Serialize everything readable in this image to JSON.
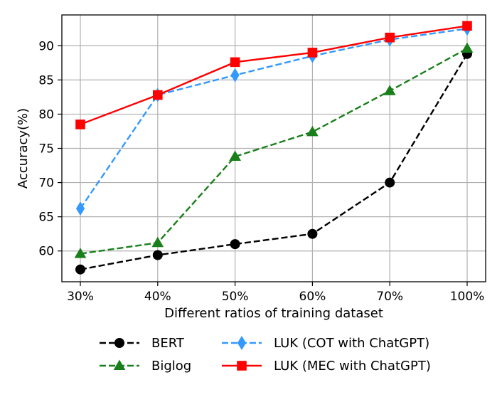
{
  "chart_data": {
    "type": "line",
    "title": "",
    "xlabel": "Different ratios of training dataset",
    "ylabel": "Accuracy(%)",
    "categories": [
      "30%",
      "40%",
      "50%",
      "60%",
      "70%",
      "100%"
    ],
    "ylim": [
      55.5,
      94.5
    ],
    "yticks": [
      60,
      65,
      70,
      75,
      80,
      85,
      90
    ],
    "grid": true,
    "legend_position": "bottom",
    "series": [
      {
        "name": "BERT",
        "color": "#000000",
        "dash": "dashed",
        "marker": "circle",
        "values": [
          57.3,
          59.4,
          61.0,
          62.5,
          70.0,
          88.8
        ]
      },
      {
        "name": "Biglog",
        "color": "#1a7f1a",
        "dash": "dashed",
        "marker": "triangle",
        "values": [
          59.6,
          61.2,
          73.8,
          77.4,
          83.4,
          89.6
        ]
      },
      {
        "name": "LUK (COT with ChatGPT)",
        "color": "#3399ff",
        "dash": "dashed",
        "marker": "diamond",
        "values": [
          66.2,
          82.8,
          85.7,
          88.5,
          90.9,
          92.5
        ]
      },
      {
        "name": "LUK (MEC with ChatGPT)",
        "color": "#ff0000",
        "dash": "solid",
        "marker": "square",
        "values": [
          78.5,
          82.8,
          87.6,
          89.0,
          91.2,
          92.9
        ]
      }
    ]
  }
}
